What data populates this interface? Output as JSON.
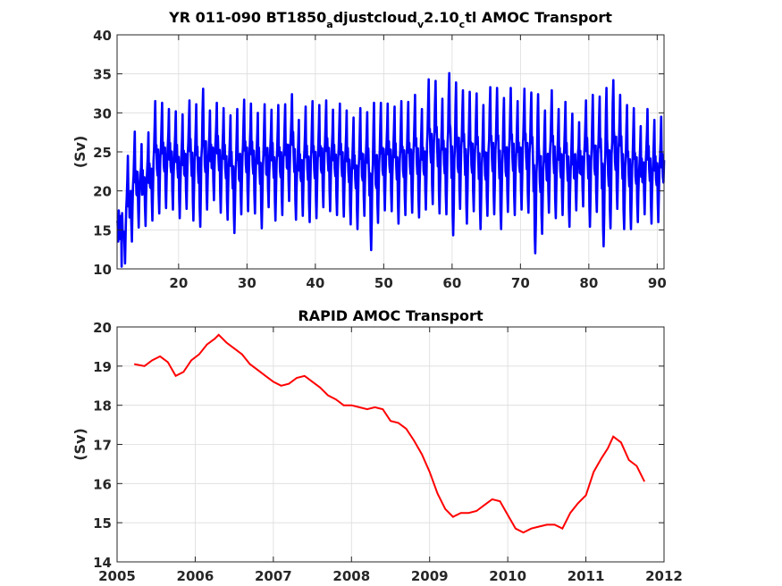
{
  "chart_data": [
    {
      "type": "line",
      "title_parts": [
        "YR 011-090 BT1850",
        "a",
        "djustcloud",
        "v",
        "2.10",
        "c",
        "tl AMOC Transport"
      ],
      "xlabel": "",
      "ylabel": "(Sv)",
      "xlim": [
        11,
        91
      ],
      "ylim": [
        10,
        40
      ],
      "xticks": [
        20,
        30,
        40,
        50,
        60,
        70,
        80,
        90
      ],
      "yticks": [
        10,
        15,
        20,
        25,
        30,
        35,
        40
      ],
      "grid": true,
      "line_color": "#0000ff",
      "series": [
        {
          "sampling": "monthly, years 11 to 91",
          "annual_max": [
            16.8,
            24.5,
            27.6,
            26.0,
            27.5,
            31.5,
            31.3,
            30.5,
            30.2,
            29.8,
            31.6,
            31.1,
            33.1,
            30.3,
            31.3,
            30.6,
            29.7,
            30.5,
            31.7,
            31.2,
            30.0,
            31.1,
            30.4,
            31.0,
            31.1,
            32.4,
            29.1,
            30.8,
            31.5,
            31.0,
            31.6,
            30.4,
            31.2,
            30.3,
            29.4,
            30.6,
            30.1,
            31.3,
            31.3,
            31.2,
            30.8,
            31.5,
            31.4,
            32.3,
            30.5,
            34.3,
            34.1,
            31.8,
            35.1,
            33.9,
            32.9,
            32.7,
            32.5,
            31.0,
            33.3,
            33.2,
            31.9,
            33.2,
            31.5,
            33.1,
            32.6,
            32.4,
            30.3,
            32.9,
            30.5,
            31.4,
            29.9,
            28.8,
            31.6,
            32.3,
            32.1,
            33.2,
            34.2,
            32.3,
            31.0,
            30.6,
            28.3,
            30.5,
            29.1,
            29.5,
            28.6
          ],
          "annual_min": [
            13.5,
            10.7,
            13.5,
            15.3,
            15.5,
            16.2,
            17.1,
            17.8,
            17.6,
            16.5,
            17.7,
            16.2,
            15.4,
            17.6,
            18.8,
            17.2,
            16.3,
            14.6,
            17.0,
            17.4,
            17.1,
            15.2,
            17.9,
            16.2,
            16.9,
            18.7,
            16.3,
            16.8,
            16.0,
            16.5,
            17.9,
            17.4,
            16.9,
            16.7,
            15.7,
            15.1,
            16.8,
            12.4,
            15.9,
            17.5,
            17.4,
            15.8,
            16.9,
            17.2,
            16.6,
            17.6,
            18.3,
            17.1,
            17.0,
            14.3,
            17.7,
            15.8,
            17.4,
            15.1,
            16.8,
            17.0,
            15.1,
            17.3,
            16.9,
            17.6,
            17.2,
            12.0,
            14.5,
            17.2,
            16.5,
            16.9,
            15.4,
            17.5,
            18.0,
            15.4,
            17.3,
            12.9,
            15.2,
            17.7,
            15.1,
            15.1,
            16.0,
            17.0,
            15.8,
            16.0,
            16.4
          ]
        }
      ]
    },
    {
      "type": "line",
      "title": "RAPID AMOC Transport",
      "xlabel": "",
      "ylabel": "(Sv)",
      "xlim": [
        2005,
        2012
      ],
      "ylim": [
        14,
        20
      ],
      "xticks": [
        2005,
        2006,
        2007,
        2008,
        2009,
        2010,
        2011,
        2012
      ],
      "yticks": [
        14,
        15,
        16,
        17,
        18,
        19,
        20
      ],
      "grid": true,
      "line_color": "#ff0000",
      "series": [
        {
          "x": [
            2005.22,
            2005.35,
            2005.45,
            2005.55,
            2005.65,
            2005.75,
            2005.85,
            2005.95,
            2006.05,
            2006.15,
            2006.25,
            2006.3,
            2006.4,
            2006.5,
            2006.6,
            2006.7,
            2006.8,
            2006.9,
            2007.0,
            2007.1,
            2007.2,
            2007.3,
            2007.4,
            2007.5,
            2007.6,
            2007.7,
            2007.8,
            2007.9,
            2008.0,
            2008.1,
            2008.2,
            2008.3,
            2008.4,
            2008.5,
            2008.6,
            2008.7,
            2008.8,
            2008.9,
            2009.0,
            2009.1,
            2009.2,
            2009.3,
            2009.4,
            2009.5,
            2009.6,
            2009.7,
            2009.8,
            2009.9,
            2010.0,
            2010.1,
            2010.2,
            2010.3,
            2010.4,
            2010.5,
            2010.6,
            2010.7,
            2010.8,
            2010.9,
            2011.0,
            2011.1,
            2011.2,
            2011.28,
            2011.35,
            2011.45,
            2011.55,
            2011.65,
            2011.75
          ],
          "y": [
            19.05,
            19.0,
            19.15,
            19.25,
            19.1,
            18.75,
            18.85,
            19.15,
            19.3,
            19.55,
            19.7,
            19.8,
            19.6,
            19.45,
            19.3,
            19.05,
            18.9,
            18.75,
            18.6,
            18.5,
            18.55,
            18.7,
            18.75,
            18.6,
            18.45,
            18.25,
            18.15,
            18.0,
            18.0,
            17.95,
            17.9,
            17.95,
            17.9,
            17.6,
            17.55,
            17.4,
            17.1,
            16.75,
            16.3,
            15.75,
            15.35,
            15.15,
            15.25,
            15.25,
            15.3,
            15.45,
            15.6,
            15.55,
            15.2,
            14.85,
            14.75,
            14.85,
            14.9,
            14.95,
            14.95,
            14.85,
            15.25,
            15.5,
            15.7,
            16.3,
            16.65,
            16.9,
            17.2,
            17.05,
            16.6,
            16.45,
            16.05
          ]
        }
      ]
    }
  ]
}
